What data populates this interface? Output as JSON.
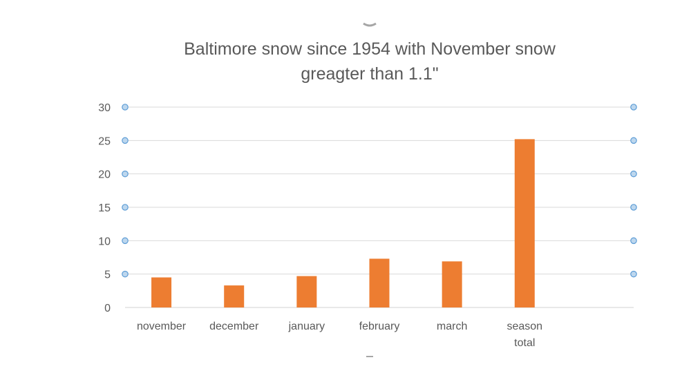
{
  "chart_data": {
    "type": "bar",
    "title_lines": [
      "Baltimore snow since 1954 with November snow",
      "greagter than 1.1\""
    ],
    "categories": [
      [
        "november"
      ],
      [
        "december"
      ],
      [
        "january"
      ],
      [
        "february"
      ],
      [
        "march"
      ],
      [
        "season",
        "total"
      ],
      [
        ""
      ]
    ],
    "series": [
      {
        "values": [
          4.5,
          3.3,
          4.7,
          7.3,
          6.9,
          25.2,
          null
        ],
        "color": "#ed7d31"
      }
    ],
    "ylim": [
      0,
      30
    ],
    "yticks": [
      0,
      5,
      10,
      15,
      20,
      25,
      30
    ],
    "grid": true,
    "legend": "none"
  }
}
